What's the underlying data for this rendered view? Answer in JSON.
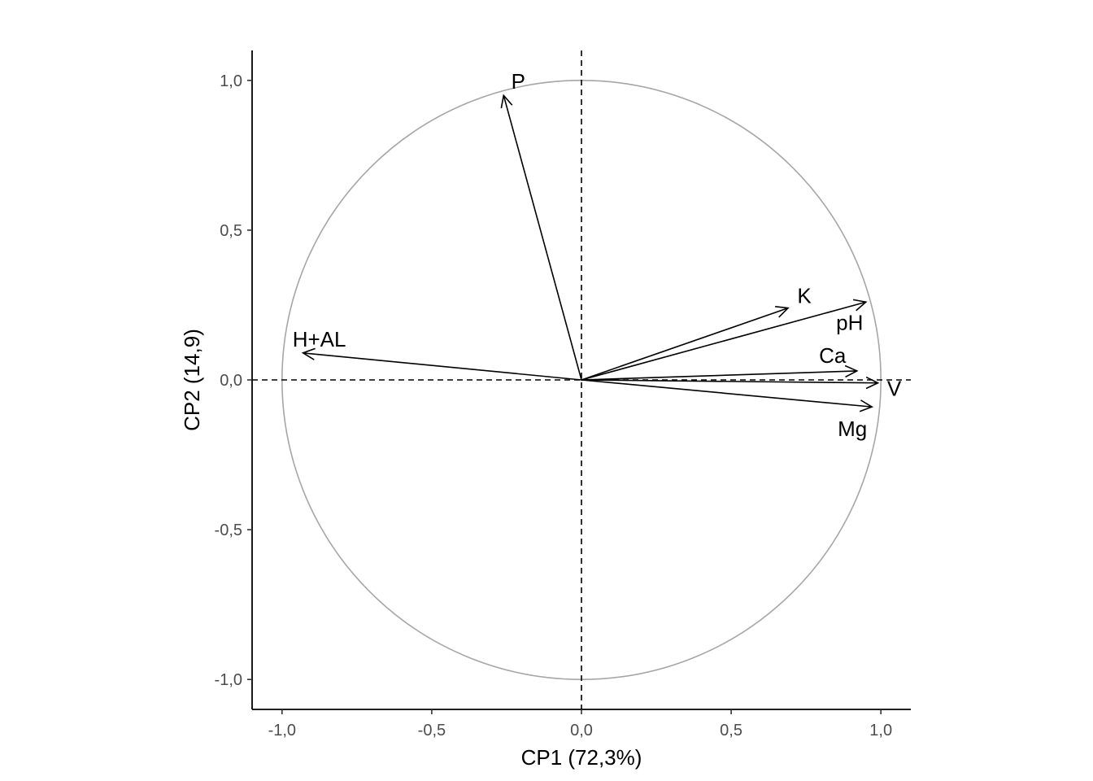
{
  "chart_data": {
    "type": "scatter",
    "subtype": "pca-correlation-circle",
    "title": "",
    "xlabel": "CP1 (72,3%)",
    "ylabel": "CP2 (14,9)",
    "xlim": [
      -1.1,
      1.1
    ],
    "ylim": [
      -1.1,
      1.1
    ],
    "xticks": [
      -1.0,
      -0.5,
      0.0,
      0.5,
      1.0
    ],
    "xtick_labels": [
      "-1,0",
      "-0,5",
      "0,0",
      "0,5",
      "1,0"
    ],
    "yticks": [
      -1.0,
      -0.5,
      0.0,
      0.5,
      1.0
    ],
    "ytick_labels": [
      "-1,0",
      "-0,5",
      "0,0",
      "0,5",
      "1,0"
    ],
    "grid": false,
    "reference_lines": {
      "x": 0,
      "y": 0,
      "style": "dashed"
    },
    "unit_circle": {
      "radius": 1,
      "color": "#a6a6a6"
    },
    "vectors": [
      {
        "name": "P",
        "x": -0.26,
        "y": 0.95
      },
      {
        "name": "K",
        "x": 0.69,
        "y": 0.24
      },
      {
        "name": "pH",
        "x": 0.95,
        "y": 0.26
      },
      {
        "name": "H+AL",
        "x": -0.93,
        "y": 0.09
      },
      {
        "name": "Ca",
        "x": 0.92,
        "y": 0.03
      },
      {
        "name": "V",
        "x": 0.99,
        "y": -0.01
      },
      {
        "name": "Mg",
        "x": 0.97,
        "y": -0.09
      }
    ],
    "colors": {
      "vectors": "#000000",
      "circle": "#a6a6a6",
      "axis": "#000000",
      "tick_text": "#4d4d4d"
    }
  }
}
